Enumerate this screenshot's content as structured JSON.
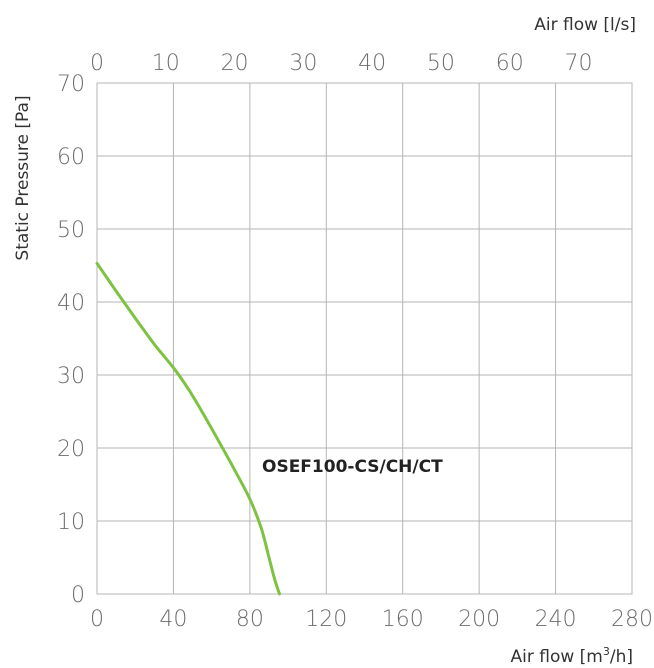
{
  "chart_data": {
    "type": "line",
    "top_axis_label": "Air flow [l/s]",
    "bottom_axis_label_pre": "Air flow [m",
    "bottom_axis_label_sup": "3",
    "bottom_axis_label_post": "/h]",
    "ylabel": "Static Pressure [Pa]",
    "xlim": [
      0,
      280
    ],
    "ylim": [
      0,
      70
    ],
    "x_ticks": [
      "0",
      "40",
      "80",
      "120",
      "160",
      "200",
      "240",
      "280"
    ],
    "x_tick_values": [
      0,
      40,
      80,
      120,
      160,
      200,
      240,
      280
    ],
    "top_ticks": [
      "0",
      "10",
      "20",
      "30",
      "40",
      "50",
      "60",
      "70"
    ],
    "top_tick_values": [
      0,
      10,
      20,
      30,
      40,
      50,
      60,
      70
    ],
    "top_axis_unit_factor": 3.6,
    "y_ticks": [
      "0",
      "10",
      "20",
      "30",
      "40",
      "50",
      "60",
      "70"
    ],
    "y_tick_values": [
      0,
      10,
      20,
      30,
      40,
      50,
      60,
      70
    ],
    "grid": true,
    "series": [
      {
        "name": "OSEF100-CS/CH/CT",
        "color": "#7dc242",
        "x": [
          0,
          10,
          20,
          30,
          40,
          48,
          56,
          64,
          72,
          80,
          86,
          90,
          93,
          95.5
        ],
        "y": [
          45.3,
          41.5,
          37.8,
          34.2,
          31.0,
          28.0,
          24.5,
          20.8,
          17.0,
          13.0,
          9.0,
          5.0,
          2.0,
          0
        ]
      }
    ]
  }
}
